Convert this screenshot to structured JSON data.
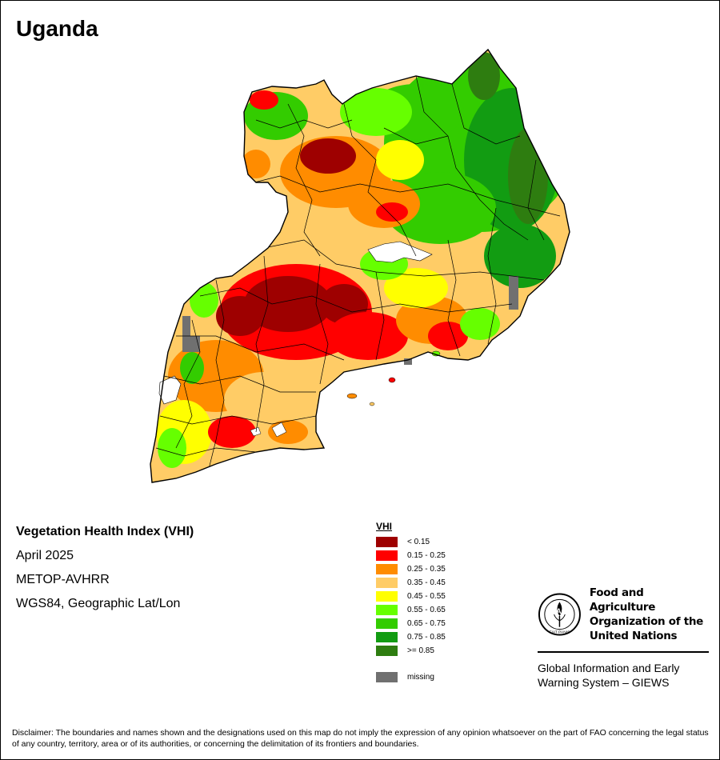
{
  "map": {
    "title": "Uganda",
    "index_name": "Vegetation Health Index (VHI)",
    "period": "April 2025",
    "sensor": "METOP-AVHRR",
    "projection": "WGS84, Geographic Lat/Lon"
  },
  "legend": {
    "title": "VHI",
    "classes": [
      {
        "label": "< 0.15",
        "color": "#9e0000"
      },
      {
        "label": "0.15 - 0.25",
        "color": "#ff0000"
      },
      {
        "label": "0.25 - 0.35",
        "color": "#ff8c00"
      },
      {
        "label": "0.35 - 0.45",
        "color": "#ffcc66"
      },
      {
        "label": "0.45 - 0.55",
        "color": "#ffff00"
      },
      {
        "label": "0.55 - 0.65",
        "color": "#66ff00"
      },
      {
        "label": "0.65 - 0.75",
        "color": "#33cc00"
      },
      {
        "label": "0.75 - 0.85",
        "color": "#129c12"
      },
      {
        "label": ">= 0.85",
        "color": "#2e7d10"
      }
    ],
    "missing": {
      "label": "missing",
      "color": "#707070"
    }
  },
  "organization": {
    "name_line1": "Food and Agriculture",
    "name_line2": "Organization of the",
    "name_line3": "United Nations",
    "emblem_text": "FAO",
    "motto": "FIAT PANIS",
    "program_line1": "Global Information and Early",
    "program_line2": "Warning System – GIEWS"
  },
  "disclaimer": "Disclaimer: The boundaries and names shown and the designations used on this map do not imply the expression of any opinion whatsoever on the part of FAO concerning the legal status of any country, territory, area or of its authorities, or concerning the delimitation of its frontiers and boundaries."
}
